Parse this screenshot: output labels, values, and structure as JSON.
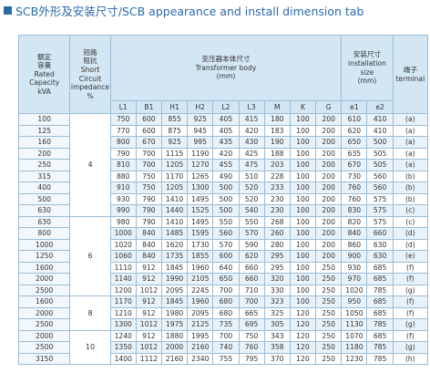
{
  "title": "SCB外形及安装尺寸/SCB appearance and install dimension tab",
  "table": {
    "headers": {
      "capacity": "额定\n容量\nRated\nCapacity\nkVA",
      "impedance": "短路\n阻抗\nShort\nCircuit\nimpedance\n%",
      "body": "变压器本体尺寸\nTransformer body\n(mm)",
      "install": "安装尺寸\ninstallation\nsize\n(mm)",
      "terminal": "端子\nterminal",
      "body_cols": [
        "L1",
        "B1",
        "H1",
        "H2",
        "L2",
        "L3",
        "M",
        "K",
        "G"
      ],
      "install_cols": [
        "e1",
        "e2"
      ]
    },
    "groups": [
      {
        "impedance": "4",
        "rows": [
          [
            "100",
            "750",
            "600",
            "855",
            "925",
            "405",
            "415",
            "180",
            "100",
            "200",
            "610",
            "410",
            "(a)"
          ],
          [
            "125",
            "770",
            "600",
            "875",
            "945",
            "405",
            "420",
            "183",
            "100",
            "200",
            "620",
            "410",
            "(a)"
          ],
          [
            "160",
            "800",
            "670",
            "925",
            "995",
            "435",
            "430",
            "190",
            "100",
            "200",
            "650",
            "500",
            "(a)"
          ],
          [
            "200",
            "790",
            "700",
            "1115",
            "1190",
            "420",
            "425",
            "188",
            "100",
            "200",
            "635",
            "505",
            "(a)"
          ],
          [
            "250",
            "810",
            "700",
            "1205",
            "1270",
            "455",
            "475",
            "203",
            "100",
            "200",
            "670",
            "505",
            "(a)"
          ],
          [
            "315",
            "880",
            "750",
            "1170",
            "1265",
            "490",
            "510",
            "228",
            "100",
            "200",
            "730",
            "560",
            "(b)"
          ],
          [
            "400",
            "910",
            "750",
            "1205",
            "1300",
            "500",
            "520",
            "233",
            "100",
            "200",
            "760",
            "560",
            "(b)"
          ],
          [
            "500",
            "930",
            "790",
            "1410",
            "1495",
            "500",
            "520",
            "230",
            "100",
            "200",
            "760",
            "575",
            "(b)"
          ],
          [
            "630",
            "990",
            "790",
            "1440",
            "1525",
            "500",
            "540",
            "230",
            "100",
            "200",
            "830",
            "575",
            "(c)"
          ]
        ]
      },
      {
        "impedance": "6",
        "rows": [
          [
            "630",
            "980",
            "790",
            "1410",
            "1495",
            "550",
            "550",
            "268",
            "100",
            "200",
            "820",
            "575",
            "(c)"
          ],
          [
            "800",
            "1000",
            "840",
            "1485",
            "1595",
            "560",
            "570",
            "260",
            "100",
            "200",
            "840",
            "660",
            "(d)"
          ],
          [
            "1000",
            "1020",
            "840",
            "1620",
            "1730",
            "570",
            "590",
            "280",
            "100",
            "200",
            "860",
            "630",
            "(d)"
          ],
          [
            "1250",
            "1060",
            "840",
            "1735",
            "1855",
            "600",
            "620",
            "295",
            "100",
            "200",
            "900",
            "630",
            "(e)"
          ],
          [
            "1600",
            "1110",
            "912",
            "1845",
            "1960",
            "640",
            "660",
            "295",
            "100",
            "250",
            "930",
            "685",
            "(f)"
          ],
          [
            "2000",
            "1140",
            "912",
            "1990",
            "2105",
            "650",
            "660",
            "320",
            "100",
            "250",
            "970",
            "685",
            "(f)"
          ],
          [
            "2500",
            "1200",
            "1012",
            "2095",
            "2245",
            "700",
            "710",
            "330",
            "100",
            "250",
            "1020",
            "785",
            "(g)"
          ]
        ]
      },
      {
        "impedance": "8",
        "rows": [
          [
            "1600",
            "1170",
            "912",
            "1845",
            "1960",
            "680",
            "700",
            "323",
            "100",
            "250",
            "950",
            "685",
            "(f)"
          ],
          [
            "2000",
            "1210",
            "912",
            "1980",
            "2095",
            "680",
            "665",
            "325",
            "120",
            "250",
            "1050",
            "685",
            "(f)"
          ],
          [
            "2500",
            "1300",
            "1012",
            "1975",
            "2125",
            "735",
            "695",
            "305",
            "120",
            "250",
            "1130",
            "785",
            "(g)"
          ]
        ]
      },
      {
        "impedance": "10",
        "rows": [
          [
            "2000",
            "1240",
            "912",
            "1880",
            "1995",
            "700",
            "750",
            "343",
            "120",
            "250",
            "1070",
            "685",
            "(f)"
          ],
          [
            "2500",
            "1350",
            "1012",
            "2000",
            "2160",
            "740",
            "760",
            "358",
            "120",
            "250",
            "1180",
            "785",
            "(g)"
          ],
          [
            "3150",
            "1400",
            "1112",
            "2160",
            "2340",
            "755",
            "795",
            "370",
            "120",
            "250",
            "1230",
            "785",
            "(h)"
          ]
        ]
      }
    ]
  }
}
